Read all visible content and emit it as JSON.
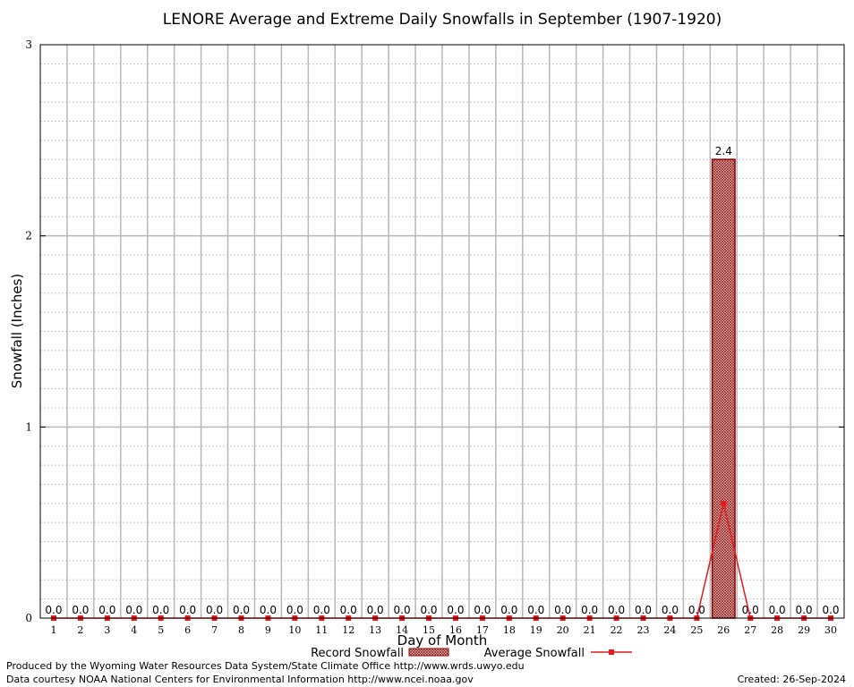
{
  "chart_data": {
    "type": "bar",
    "title": "LENORE Average and Extreme Daily Snowfalls in September (1907-1920)",
    "xlabel": "Day of Month",
    "ylabel": "Snowfall (Inches)",
    "ylim": [
      0,
      3
    ],
    "yticks": [
      "0",
      "1",
      "2",
      "3"
    ],
    "grid": true,
    "legend_position": "bottom",
    "categories": [
      "1",
      "2",
      "3",
      "4",
      "5",
      "6",
      "7",
      "8",
      "9",
      "10",
      "11",
      "12",
      "13",
      "14",
      "15",
      "16",
      "17",
      "18",
      "19",
      "20",
      "21",
      "22",
      "23",
      "24",
      "25",
      "26",
      "27",
      "28",
      "29",
      "30"
    ],
    "series": [
      {
        "name": "Record Snowfall",
        "kind": "bar",
        "color": "#8b0000",
        "values": [
          0,
          0,
          0,
          0,
          0,
          0,
          0,
          0,
          0,
          0,
          0,
          0,
          0,
          0,
          0,
          0,
          0,
          0,
          0,
          0,
          0,
          0,
          0,
          0,
          0,
          2.4,
          0,
          0,
          0,
          0
        ],
        "labels": [
          "0.0",
          "0.0",
          "0.0",
          "0.0",
          "0.0",
          "0.0",
          "0.0",
          "0.0",
          "0.0",
          "0.0",
          "0.0",
          "0.0",
          "0.0",
          "0.0",
          "0.0",
          "0.0",
          "0.0",
          "0.0",
          "0.0",
          "0.0",
          "0.0",
          "0.0",
          "0.0",
          "0.0",
          "0.0",
          "2.4",
          "0.0",
          "0.0",
          "0.0",
          "0.0"
        ]
      },
      {
        "name": "Average Snowfall",
        "kind": "line",
        "color": "#e41a1c",
        "values": [
          0,
          0,
          0,
          0,
          0,
          0,
          0,
          0,
          0,
          0,
          0,
          0,
          0,
          0,
          0,
          0,
          0,
          0,
          0,
          0,
          0,
          0,
          0,
          0,
          0,
          0.6,
          0,
          0,
          0,
          0
        ]
      }
    ]
  },
  "footer": {
    "credit_line1": "Produced by the Wyoming Water Resources Data System/State Climate Office http://www.wrds.uwyo.edu",
    "credit_line2": "Data courtesy NOAA National Centers for Environmental Information http://www.ncei.noaa.gov",
    "created": "Created:  26-Sep-2024"
  }
}
